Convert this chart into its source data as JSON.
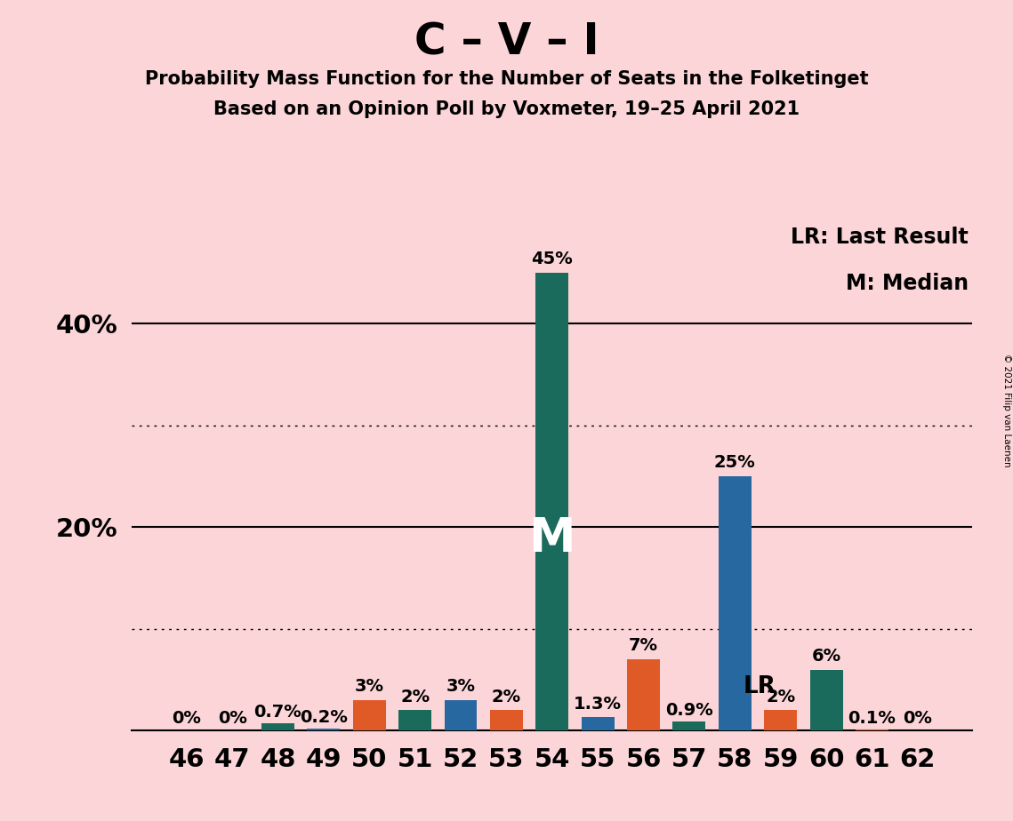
{
  "title": "C – V – I",
  "subtitle1": "Probability Mass Function for the Number of Seats in the Folketinget",
  "subtitle2": "Based on an Opinion Poll by Voxmeter, 19–25 April 2021",
  "background_color": "#FCD5D8",
  "seats": [
    46,
    47,
    48,
    49,
    50,
    51,
    52,
    53,
    54,
    55,
    56,
    57,
    58,
    59,
    60,
    61,
    62
  ],
  "values": [
    0.0,
    0.0,
    0.7,
    0.2,
    3.0,
    2.0,
    3.0,
    2.0,
    45.0,
    1.3,
    7.0,
    0.9,
    25.0,
    2.0,
    6.0,
    0.1,
    0.0
  ],
  "labels": [
    "0%",
    "0%",
    "0.7%",
    "0.2%",
    "3%",
    "2%",
    "3%",
    "2%",
    "45%",
    "1.3%",
    "7%",
    "0.9%",
    "25%",
    "2%",
    "6%",
    "0.1%",
    "0%"
  ],
  "colors": [
    "#E05A28",
    "#E05A28",
    "#1B6B5C",
    "#2868A0",
    "#E05A28",
    "#1B6B5C",
    "#2868A0",
    "#E05A28",
    "#1B6B5C",
    "#2868A0",
    "#E05A28",
    "#1B6B5C",
    "#2868A0",
    "#E05A28",
    "#1B6B5C",
    "#E05A28",
    "#E05A28"
  ],
  "median_seat": 54,
  "lr_seat": 59,
  "legend_lr": "LR: Last Result",
  "legend_m": "M: Median",
  "yticks": [
    20,
    40
  ],
  "dotted_yticks": [
    10,
    30
  ],
  "ylim": [
    0,
    50
  ],
  "copyright": "© 2021 Filip van Laenen"
}
